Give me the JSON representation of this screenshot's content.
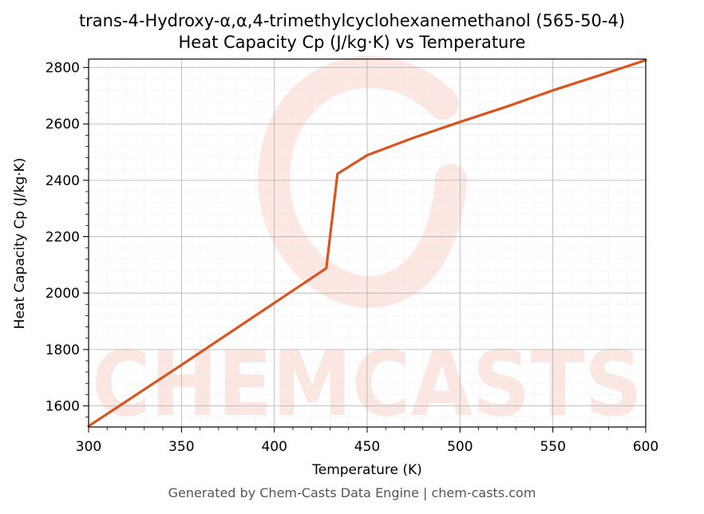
{
  "chart_data": {
    "type": "line",
    "title": "trans-4-Hydroxy-α,α,4-trimethylcyclohexanemethanol (565-50-4)",
    "subtitle": "Heat Capacity Cp (J/kg·K) vs Temperature",
    "xlabel": "Temperature (K)",
    "ylabel": "Heat Capacity Cp (J/kg·K)",
    "xlim": [
      300,
      600
    ],
    "ylim": [
      1525,
      2830
    ],
    "xticks": [
      300,
      350,
      400,
      450,
      500,
      550,
      600
    ],
    "yticks": [
      1600,
      1800,
      2000,
      2200,
      2400,
      2600,
      2800
    ],
    "grid": true,
    "series": [
      {
        "color": "#d9541e",
        "x": [
          300,
          350,
          400,
          428,
          434,
          450,
          475,
          500,
          525,
          550,
          575,
          600
        ],
        "y": [
          1528,
          1745,
          1965,
          2088,
          2423,
          2489,
          2551,
          2607,
          2661,
          2719,
          2772,
          2826
        ]
      }
    ]
  },
  "watermark": "CHEMCASTS",
  "footer": "Generated by Chem-Casts Data Engine | chem-casts.com"
}
